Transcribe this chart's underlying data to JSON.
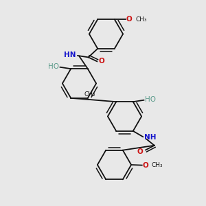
{
  "bg": "#e8e8e8",
  "bond_color": "#111111",
  "N_color": "#1414cc",
  "O_color": "#cc1414",
  "OH_color": "#5a9a8a",
  "figsize": [
    3.0,
    3.0
  ],
  "dpi": 100,
  "xlim": [
    0,
    10
  ],
  "ylim": [
    0,
    10
  ]
}
